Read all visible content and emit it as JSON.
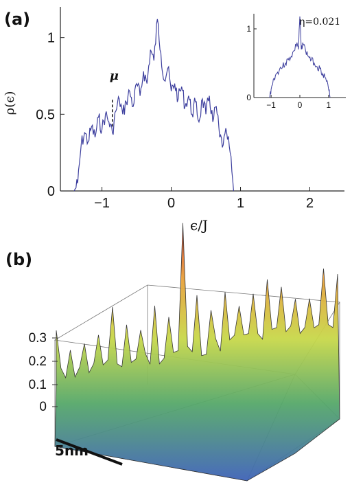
{
  "figure": {
    "panel_a_label": "(a)",
    "panel_b_label": "(b)",
    "main_ylabel": "ρ(ϵ)",
    "main_xlabel": "ϵ/J",
    "mu_label": "μ",
    "inset_annotation": "η=0.021",
    "scale_bar_label": "5nm"
  },
  "chart_data": [
    {
      "type": "line",
      "panel": "(a)",
      "xlabel": "ϵ/J",
      "ylabel": "ρ(ϵ)",
      "xlim": [
        -1.6,
        2.5
      ],
      "ylim": [
        0,
        1.2
      ],
      "xticks": [
        -1,
        0,
        1,
        2
      ],
      "xtick_labels": [
        "−1",
        "0",
        "1",
        "2"
      ],
      "yticks": [
        0,
        0.5,
        1
      ],
      "ytick_labels": [
        "0",
        "0.5",
        "1"
      ],
      "color": "#3d3f9e",
      "annotation": {
        "text": "μ",
        "x": -0.85,
        "dash_from": 0.42,
        "dash_to": 0.6
      },
      "series": [
        {
          "x": [
            -1.4,
            -1.35,
            -1.3,
            -1.25,
            -1.2,
            -1.15,
            -1.1,
            -1.05,
            -1.0,
            -0.95,
            -0.9,
            -0.85,
            -0.8,
            -0.75,
            -0.7,
            -0.65,
            -0.6,
            -0.55,
            -0.5,
            -0.45,
            -0.4,
            -0.35,
            -0.3,
            -0.25,
            -0.2,
            -0.15,
            -0.1,
            -0.05,
            0.0,
            0.05,
            0.1,
            0.15,
            0.2,
            0.25,
            0.3,
            0.35,
            0.4,
            0.45,
            0.5,
            0.55,
            0.6,
            0.65,
            0.7,
            0.75,
            0.8,
            0.85,
            0.9
          ],
          "y": [
            0.0,
            0.05,
            0.3,
            0.38,
            0.32,
            0.42,
            0.35,
            0.48,
            0.4,
            0.5,
            0.45,
            0.38,
            0.52,
            0.6,
            0.5,
            0.58,
            0.65,
            0.55,
            0.7,
            0.62,
            0.78,
            0.7,
            0.92,
            0.85,
            1.12,
            0.9,
            0.72,
            0.8,
            0.65,
            0.7,
            0.6,
            0.68,
            0.55,
            0.62,
            0.5,
            0.58,
            0.45,
            0.6,
            0.5,
            0.62,
            0.45,
            0.55,
            0.35,
            0.3,
            0.38,
            0.25,
            0.0
          ]
        }
      ]
    },
    {
      "type": "line",
      "panel": "(a) inset",
      "annotation": "η=0.021",
      "xlim": [
        -1.6,
        1.6
      ],
      "ylim": [
        0,
        1.2
      ],
      "xticks": [
        -1,
        0,
        1
      ],
      "xtick_labels": [
        "−1",
        "0",
        "1"
      ],
      "yticks": [
        0,
        1
      ],
      "ytick_labels": [
        "0",
        "1"
      ],
      "color": "#3d3f9e",
      "series": [
        {
          "x": [
            -1.05,
            -1.0,
            -0.9,
            -0.8,
            -0.7,
            -0.6,
            -0.5,
            -0.4,
            -0.3,
            -0.2,
            -0.1,
            -0.05,
            0.0,
            0.05,
            0.1,
            0.2,
            0.3,
            0.4,
            0.5,
            0.6,
            0.7,
            0.8,
            0.9,
            1.0,
            1.05
          ],
          "y": [
            0.0,
            0.12,
            0.28,
            0.35,
            0.42,
            0.45,
            0.5,
            0.55,
            0.6,
            0.68,
            0.8,
            0.7,
            1.18,
            0.7,
            0.8,
            0.68,
            0.6,
            0.55,
            0.5,
            0.45,
            0.42,
            0.35,
            0.28,
            0.12,
            0.0
          ]
        }
      ]
    },
    {
      "type": "surface3d",
      "panel": "(b)",
      "zticks": [
        0,
        0.1,
        0.2,
        0.3
      ],
      "ztick_labels": [
        "0",
        "0.1",
        "0.2",
        "0.3"
      ],
      "scale_bar": "5nm",
      "colormap": [
        "#3f63b8",
        "#56a86a",
        "#c8d84a",
        "#e8a23c",
        "#cf3b2c"
      ]
    }
  ]
}
